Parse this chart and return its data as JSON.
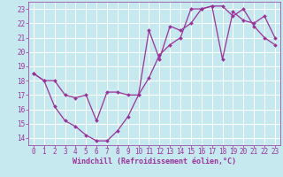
{
  "xlabel": "Windchill (Refroidissement éolien,°C)",
  "xlim": [
    -0.5,
    23.5
  ],
  "ylim": [
    13.5,
    23.5
  ],
  "yticks": [
    14,
    15,
    16,
    17,
    18,
    19,
    20,
    21,
    22,
    23
  ],
  "xticks": [
    0,
    1,
    2,
    3,
    4,
    5,
    6,
    7,
    8,
    9,
    10,
    11,
    12,
    13,
    14,
    15,
    16,
    17,
    18,
    19,
    20,
    21,
    22,
    23
  ],
  "bg_color": "#c6e8ef",
  "line_color": "#993399",
  "grid_color": "#ffffff",
  "line1_x": [
    0,
    1,
    2,
    3,
    4,
    5,
    6,
    7,
    8,
    9,
    10,
    11,
    12,
    13,
    14,
    15,
    16,
    17,
    18,
    19,
    20,
    21,
    22,
    23
  ],
  "line1_y": [
    18.5,
    18.0,
    16.2,
    15.2,
    14.8,
    14.2,
    13.8,
    13.8,
    14.5,
    15.5,
    17.0,
    18.2,
    19.8,
    20.5,
    21.0,
    23.0,
    23.0,
    23.2,
    23.2,
    22.5,
    23.0,
    21.8,
    21.0,
    20.5
  ],
  "line2_x": [
    0,
    1,
    2,
    3,
    4,
    5,
    6,
    7,
    8,
    9,
    10,
    11,
    12,
    13,
    14,
    15,
    16,
    17,
    18,
    19,
    20,
    21,
    22,
    23
  ],
  "line2_y": [
    18.5,
    18.0,
    18.0,
    17.0,
    16.8,
    17.0,
    15.2,
    17.2,
    17.2,
    17.0,
    17.0,
    21.5,
    19.5,
    21.8,
    21.5,
    22.0,
    23.0,
    23.2,
    19.5,
    22.8,
    22.2,
    22.0,
    22.5,
    21.0
  ],
  "fontsize_xlabel": 6,
  "fontsize_ticks": 5.5,
  "marker": "D",
  "markersize": 2.0,
  "linewidth": 0.9
}
